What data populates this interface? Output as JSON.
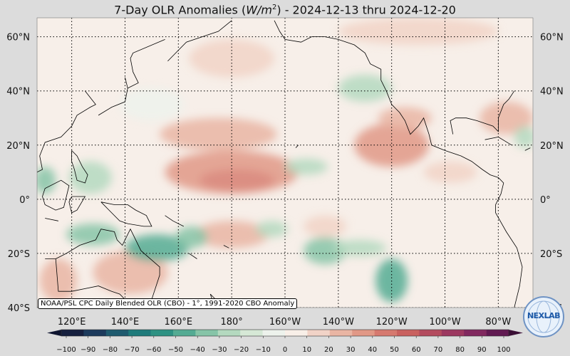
{
  "title": {
    "prefix": "7-Day OLR Anomalies (",
    "unit_w": "W/m",
    "unit_exp": "2",
    "suffix": ") - 2024-12-13 thru 2024-12-20"
  },
  "credit": "NOAA/PSL CPC Daily Blended OLR (CBO) - 1°, 1991-2020 CBO Anomaly",
  "logo_text": "NEXLAB",
  "lat_labels": [
    "60°N",
    "40°N",
    "20°N",
    "0°",
    "20°S",
    "40°S"
  ],
  "lon_labels": [
    "120°E",
    "140°E",
    "160°E",
    "180°",
    "160°W",
    "140°W",
    "120°W",
    "100°W",
    "80°W"
  ],
  "colorbar": {
    "ticks": [
      "−100",
      "−90",
      "−80",
      "−70",
      "−60",
      "−50",
      "−40",
      "−30",
      "−20",
      "−10",
      "0",
      "10",
      "20",
      "30",
      "40",
      "50",
      "60",
      "70",
      "80",
      "90",
      "100"
    ],
    "colors": [
      "#16203f",
      "#1c3a5c",
      "#1f5b6f",
      "#1f7b7b",
      "#2e9283",
      "#54ab93",
      "#86c4a7",
      "#b4d9bf",
      "#d6e8d6",
      "#edf2ec",
      "#f8efe8",
      "#f1d3c7",
      "#e9b5a3",
      "#e19886",
      "#d6796f",
      "#c9615f",
      "#b34b5e",
      "#9c3860",
      "#81285f",
      "#611a52"
    ]
  },
  "map": {
    "lat_min": -40,
    "lat_max": 67,
    "lon_min": 107,
    "lon_max": 293,
    "blobs": [
      {
        "lon": 182,
        "lat": 7,
        "rx": 14,
        "ry": 4,
        "value": 65
      },
      {
        "lon": 180,
        "lat": 10,
        "rx": 25,
        "ry": 8,
        "value": 35
      },
      {
        "lon": 175,
        "lat": 24,
        "rx": 22,
        "ry": 6,
        "value": 22
      },
      {
        "lon": 240,
        "lat": 20,
        "rx": 14,
        "ry": 8,
        "value": 32
      },
      {
        "lon": 245,
        "lat": 30,
        "rx": 10,
        "ry": 4,
        "value": 25
      },
      {
        "lon": 262,
        "lat": 10,
        "rx": 10,
        "ry": 4,
        "value": 18
      },
      {
        "lon": 283,
        "lat": 30,
        "rx": 10,
        "ry": 6,
        "value": 22
      },
      {
        "lon": 180,
        "lat": -13,
        "rx": 14,
        "ry": 5,
        "value": 26
      },
      {
        "lon": 215,
        "lat": -10,
        "rx": 8,
        "ry": 4,
        "value": 18
      },
      {
        "lon": 142,
        "lat": -27,
        "rx": 14,
        "ry": 8,
        "value": 24
      },
      {
        "lon": 115,
        "lat": -30,
        "rx": 7,
        "ry": 8,
        "value": 20
      },
      {
        "lon": 180,
        "lat": 52,
        "rx": 16,
        "ry": 7,
        "value": 14
      },
      {
        "lon": 250,
        "lat": 62,
        "rx": 30,
        "ry": 5,
        "value": 12
      },
      {
        "lon": 152,
        "lat": -18,
        "rx": 12,
        "ry": 5,
        "value": -45
      },
      {
        "lon": 165,
        "lat": -14,
        "rx": 6,
        "ry": 4,
        "value": -35
      },
      {
        "lon": 128,
        "lat": -13,
        "rx": 10,
        "ry": 4,
        "value": -35
      },
      {
        "lon": 127,
        "lat": 8,
        "rx": 8,
        "ry": 6,
        "value": -25
      },
      {
        "lon": 110,
        "lat": 7,
        "rx": 4,
        "ry": 5,
        "value": -35
      },
      {
        "lon": 215,
        "lat": -19,
        "rx": 8,
        "ry": 5,
        "value": -40
      },
      {
        "lon": 228,
        "lat": -18,
        "rx": 10,
        "ry": 3,
        "value": -28
      },
      {
        "lon": 240,
        "lat": -30,
        "rx": 6,
        "ry": 8,
        "value": -42
      },
      {
        "lon": 208,
        "lat": 12,
        "rx": 8,
        "ry": 3,
        "value": -30
      },
      {
        "lon": 230,
        "lat": 41,
        "rx": 10,
        "ry": 5,
        "value": -30
      },
      {
        "lon": 195,
        "lat": -11,
        "rx": 6,
        "ry": 3,
        "value": -22
      },
      {
        "lon": 290,
        "lat": 23,
        "rx": 4,
        "ry": 4,
        "value": -30
      },
      {
        "lon": 150,
        "lat": 35,
        "rx": 12,
        "ry": 6,
        "value": -10
      }
    ],
    "coastlines": [
      [
        [
          125,
          40
        ],
        [
          129,
          35
        ],
        [
          127,
          34
        ],
        [
          122,
          31
        ],
        [
          120,
          27
        ],
        [
          116,
          23
        ],
        [
          110,
          21
        ],
        [
          108,
          16
        ],
        [
          109,
          11
        ],
        [
          105,
          9
        ]
      ],
      [
        [
          130,
          31
        ],
        [
          135,
          34
        ],
        [
          140,
          36
        ],
        [
          141,
          41
        ],
        [
          140,
          45
        ]
      ],
      [
        [
          141,
          41
        ],
        [
          145,
          43
        ],
        [
          143,
          47
        ],
        [
          142,
          52
        ],
        [
          143,
          54
        ],
        [
          155,
          59
        ]
      ],
      [
        [
          156,
          51
        ],
        [
          160,
          55
        ],
        [
          163,
          58
        ],
        [
          175,
          62
        ],
        [
          180,
          66
        ]
      ],
      [
        [
          196,
          66
        ],
        [
          198,
          62
        ],
        [
          200,
          59
        ],
        [
          206,
          58
        ],
        [
          210,
          60
        ],
        [
          215,
          60
        ],
        [
          220,
          59
        ],
        [
          226,
          57
        ],
        [
          230,
          54
        ],
        [
          232,
          50
        ],
        [
          236,
          48
        ],
        [
          236,
          44
        ],
        [
          238,
          40
        ],
        [
          240,
          35
        ],
        [
          243,
          32
        ],
        [
          245,
          29
        ],
        [
          247,
          24
        ],
        [
          250,
          27
        ],
        [
          252,
          30
        ],
        [
          254,
          24
        ],
        [
          255,
          20
        ],
        [
          260,
          18
        ],
        [
          266,
          16
        ],
        [
          270,
          14
        ],
        [
          274,
          11
        ],
        [
          277,
          9
        ],
        [
          280,
          8
        ],
        [
          282,
          6
        ],
        [
          281,
          2
        ],
        [
          279,
          -2
        ],
        [
          279,
          -5
        ],
        [
          283,
          -12
        ],
        [
          287,
          -18
        ],
        [
          289,
          -25
        ],
        [
          288,
          -32
        ],
        [
          286,
          -40
        ]
      ],
      [
        [
          263,
          24
        ],
        [
          262,
          29
        ],
        [
          264,
          30
        ],
        [
          268,
          30
        ],
        [
          272,
          29
        ],
        [
          278,
          27
        ],
        [
          280,
          25
        ],
        [
          280,
          30
        ],
        [
          282,
          35
        ],
        [
          284,
          37
        ],
        [
          286,
          40
        ]
      ],
      [
        [
          275,
          22
        ],
        [
          280,
          23
        ],
        [
          285,
          20
        ]
      ],
      [
        [
          290,
          18
        ],
        [
          292,
          19
        ]
      ],
      [
        [
          110,
          -22
        ],
        [
          114,
          -22
        ],
        [
          115,
          -34
        ],
        [
          120,
          -34
        ],
        [
          130,
          -32
        ],
        [
          135,
          -34
        ],
        [
          138,
          -35
        ],
        [
          141,
          -38
        ],
        [
          147,
          -39
        ],
        [
          150,
          -37
        ],
        [
          153,
          -28
        ],
        [
          153,
          -25
        ],
        [
          146,
          -19
        ],
        [
          142,
          -11
        ],
        [
          139,
          -17
        ],
        [
          137,
          -15
        ],
        [
          136,
          -12
        ],
        [
          131,
          -11
        ],
        [
          129,
          -15
        ],
        [
          123,
          -17
        ],
        [
          118,
          -20
        ],
        [
          114,
          -22
        ]
      ],
      [
        [
          131,
          -1
        ],
        [
          134,
          -4
        ],
        [
          138,
          -8
        ],
        [
          141,
          -9
        ],
        [
          147,
          -10
        ],
        [
          150,
          -10
        ],
        [
          148,
          -6
        ],
        [
          144,
          -4
        ],
        [
          141,
          -2
        ],
        [
          136,
          -2
        ],
        [
          131,
          -1
        ]
      ],
      [
        [
          110,
          -7
        ],
        [
          115,
          -8
        ]
      ],
      [
        [
          95,
          5
        ],
        [
          100,
          2
        ],
        [
          104,
          -3
        ],
        [
          106,
          -6
        ]
      ],
      [
        [
          109,
          1
        ],
        [
          110,
          4
        ],
        [
          116,
          7
        ],
        [
          119,
          5
        ],
        [
          118,
          1
        ],
        [
          117,
          -3
        ],
        [
          114,
          -4
        ],
        [
          110,
          -2
        ],
        [
          109,
          1
        ]
      ],
      [
        [
          120,
          18
        ],
        [
          122,
          16
        ],
        [
          124,
          12
        ],
        [
          126,
          9
        ],
        [
          125,
          6
        ],
        [
          122,
          7
        ],
        [
          121,
          11
        ],
        [
          120,
          14
        ],
        [
          120,
          18
        ]
      ],
      [
        [
          120,
          1
        ],
        [
          125,
          1
        ],
        [
          122,
          -4
        ],
        [
          120,
          -5
        ],
        [
          119,
          -1
        ],
        [
          120,
          1
        ]
      ],
      [
        [
          172,
          -35
        ],
        [
          174,
          -37
        ],
        [
          178,
          -38
        ],
        [
          175,
          -41
        ],
        [
          174,
          -41
        ],
        [
          172,
          -35
        ]
      ],
      [
        [
          166,
          -46
        ],
        [
          172,
          -42
        ],
        [
          174,
          -41
        ]
      ],
      [
        [
          155,
          -6
        ],
        [
          158,
          -8
        ],
        [
          162,
          -10
        ]
      ],
      [
        [
          164,
          -20
        ],
        [
          167,
          -22
        ]
      ],
      [
        [
          177,
          -17
        ],
        [
          179,
          -18
        ]
      ],
      [
        [
          204,
          19
        ],
        [
          205,
          20
        ]
      ]
    ]
  }
}
